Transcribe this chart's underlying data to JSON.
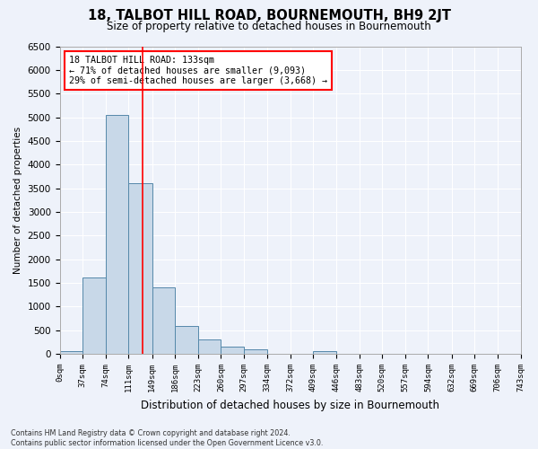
{
  "title": "18, TALBOT HILL ROAD, BOURNEMOUTH, BH9 2JT",
  "subtitle": "Size of property relative to detached houses in Bournemouth",
  "xlabel": "Distribution of detached houses by size in Bournemouth",
  "ylabel": "Number of detached properties",
  "bin_labels": [
    "0sqm",
    "37sqm",
    "74sqm",
    "111sqm",
    "149sqm",
    "186sqm",
    "223sqm",
    "260sqm",
    "297sqm",
    "334sqm",
    "372sqm",
    "409sqm",
    "446sqm",
    "483sqm",
    "520sqm",
    "557sqm",
    "594sqm",
    "632sqm",
    "669sqm",
    "706sqm",
    "743sqm"
  ],
  "bin_edges": [
    0,
    37,
    74,
    111,
    149,
    186,
    223,
    260,
    297,
    334,
    372,
    409,
    446,
    483,
    520,
    557,
    594,
    632,
    669,
    706,
    743
  ],
  "bar_values": [
    70,
    1620,
    5050,
    3600,
    1400,
    590,
    300,
    150,
    100,
    0,
    0,
    60,
    0,
    0,
    0,
    0,
    0,
    0,
    0,
    0
  ],
  "bar_color": "#c8d8e8",
  "bar_edge_color": "#5588aa",
  "property_size": 133,
  "annotation_text_line1": "18 TALBOT HILL ROAD: 133sqm",
  "annotation_text_line2": "← 71% of detached houses are smaller (9,093)",
  "annotation_text_line3": "29% of semi-detached houses are larger (3,668) →",
  "ylim": [
    0,
    6500
  ],
  "yticks": [
    0,
    500,
    1000,
    1500,
    2000,
    2500,
    3000,
    3500,
    4000,
    4500,
    5000,
    5500,
    6000,
    6500
  ],
  "background_color": "#eef2fa",
  "grid_color": "#ffffff",
  "footer_line1": "Contains HM Land Registry data © Crown copyright and database right 2024.",
  "footer_line2": "Contains public sector information licensed under the Open Government Licence v3.0."
}
